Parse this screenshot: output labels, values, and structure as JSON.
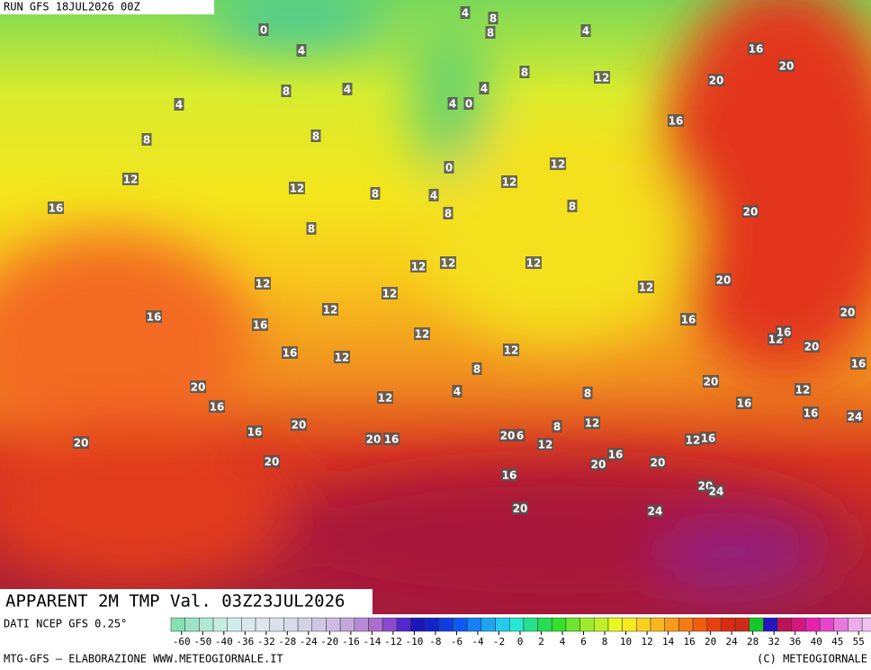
{
  "header": {
    "run": "RUN GFS 18JUL2026 00Z"
  },
  "title": "APPARENT 2M TMP Val. 03Z23JUL2026",
  "source": "DATI NCEP GFS 0.25°",
  "credit": "MTG-GFS — ELABORAZIONE WWW.METEOGIORNALE.IT",
  "copyright": "(C) METEOGIORNALE",
  "colorbar": {
    "ticks": [
      -60,
      -50,
      -40,
      -36,
      -32,
      -28,
      -24,
      -20,
      -16,
      -14,
      -12,
      -10,
      -8,
      -6,
      -4,
      -2,
      0,
      2,
      4,
      6,
      8,
      10,
      12,
      14,
      16,
      20,
      24,
      28,
      32,
      36,
      40,
      45,
      55
    ]
  },
  "map": {
    "labels": [
      0,
      4,
      8,
      4,
      4,
      8,
      8,
      12,
      12,
      8,
      16,
      8,
      12,
      12,
      16,
      16,
      16,
      12,
      20,
      16,
      16,
      20,
      20,
      20,
      20,
      16,
      4,
      8,
      8,
      4,
      8,
      4,
      4,
      0,
      12,
      16,
      20,
      20,
      16,
      12,
      12,
      0,
      4,
      8,
      8,
      20,
      12,
      12,
      12,
      12,
      12,
      20,
      16,
      12,
      20,
      12,
      16,
      20,
      12,
      8,
      12,
      4,
      8,
      20,
      16,
      12,
      16,
      16,
      24,
      12,
      8,
      20,
      6,
      12,
      12,
      16,
      20,
      16,
      20,
      16,
      20,
      20,
      24,
      24
    ]
  }
}
